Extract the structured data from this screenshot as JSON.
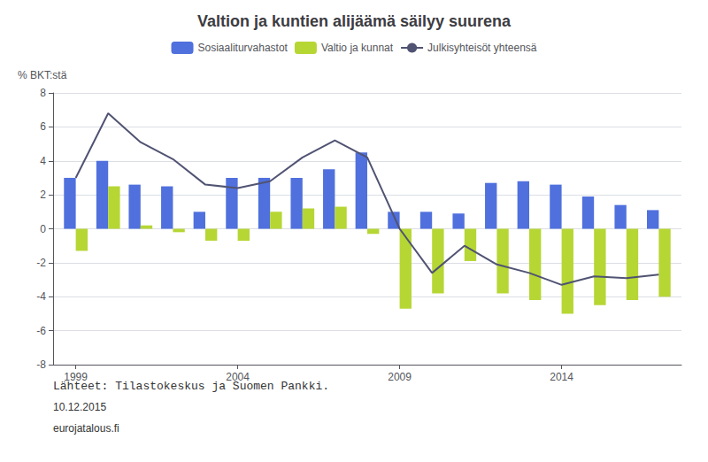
{
  "chart_data": {
    "type": "bar",
    "title": "Valtion ja kuntien alijäämä säilyy suurena",
    "ylabel": "% BKT:stä",
    "annotations": [
      "Lähteet: Tilastokeskus ja Suomen Pankki.",
      "10.12.2015",
      "eurojatalous.fi"
    ],
    "x": [
      1999,
      2000,
      2001,
      2002,
      2003,
      2004,
      2005,
      2006,
      2007,
      2008,
      2009,
      2010,
      2011,
      2012,
      2013,
      2014,
      2015,
      2016,
      2017
    ],
    "series": [
      {
        "name": "Sosiaaliturvahastot",
        "values": [
          3.0,
          4.0,
          2.6,
          2.5,
          1.0,
          3.0,
          3.0,
          3.0,
          3.5,
          4.5,
          1.0,
          1.0,
          0.9,
          2.7,
          2.8,
          2.6,
          1.9,
          1.4,
          1.1
        ]
      },
      {
        "name": "Valtio ja kunnat",
        "values": [
          -1.3,
          2.5,
          0.2,
          -0.2,
          -0.7,
          -0.7,
          1.0,
          1.2,
          1.3,
          -0.3,
          -4.7,
          -3.8,
          -1.9,
          -3.8,
          -4.2,
          -5.0,
          -4.5,
          -4.2,
          -4.0
        ]
      },
      {
        "name": "Julkisyhteisöt yhteensä",
        "type": "line",
        "values": [
          3.0,
          6.8,
          5.1,
          4.1,
          2.6,
          2.4,
          2.8,
          4.2,
          5.2,
          4.2,
          0.0,
          -2.6,
          -1.0,
          -2.1,
          -2.6,
          -3.3,
          -2.8,
          -2.9,
          -2.7
        ]
      }
    ],
    "xlim": [
      1998.3,
      2017.7
    ],
    "xticks": [
      1999,
      2004,
      2009,
      2014
    ],
    "ylim": [
      -8,
      8
    ],
    "yticks": [
      -8,
      -6,
      -4,
      -2,
      0,
      2,
      4,
      6,
      8
    ],
    "grid": true,
    "legend": "top"
  }
}
